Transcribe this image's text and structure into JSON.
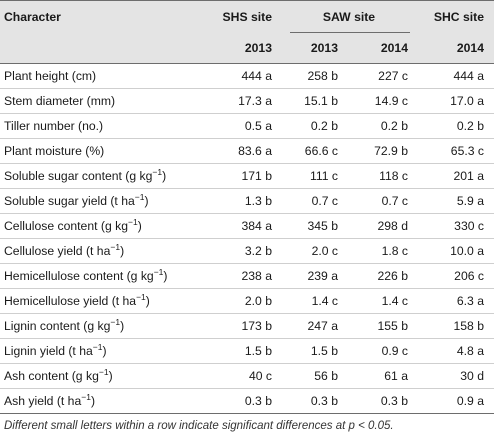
{
  "header": {
    "character": "Character",
    "sites": {
      "shs": "SHS site",
      "saw": "SAW site",
      "shc": "SHC site"
    },
    "years": [
      "2013",
      "2013",
      "2014",
      "2014"
    ]
  },
  "rows": [
    {
      "label": "Plant height (cm)",
      "unit_sup": "",
      "unit_tail": "",
      "values": [
        "444 a",
        "258 b",
        "227 c",
        "444 a"
      ]
    },
    {
      "label": "Stem diameter (mm)",
      "unit_sup": "",
      "unit_tail": "",
      "values": [
        "17.3 a",
        "15.1 b",
        "14.9 c",
        "17.0 a"
      ]
    },
    {
      "label": "Tiller number (no.)",
      "unit_sup": "",
      "unit_tail": "",
      "values": [
        "0.5 a",
        "0.2 b",
        "0.2 b",
        "0.2 b"
      ]
    },
    {
      "label": "Plant moisture (%)",
      "unit_sup": "",
      "unit_tail": "",
      "values": [
        "83.6 a",
        "66.6 c",
        "72.9 b",
        "65.3 c"
      ]
    },
    {
      "label": "Soluble sugar content (g kg",
      "unit_sup": "−1",
      "unit_tail": ")",
      "values": [
        "171 b",
        "111 c",
        "118 c",
        "201 a"
      ]
    },
    {
      "label": "Soluble sugar yield (t ha",
      "unit_sup": "−1",
      "unit_tail": ")",
      "values": [
        "1.3 b",
        "0.7 c",
        "0.7 c",
        "5.9 a"
      ]
    },
    {
      "label": "Cellulose content (g kg",
      "unit_sup": "−1",
      "unit_tail": ")",
      "values": [
        "384 a",
        "345 b",
        "298 d",
        "330 c"
      ]
    },
    {
      "label": "Cellulose yield (t ha",
      "unit_sup": "−1",
      "unit_tail": ")",
      "values": [
        "3.2 b",
        "2.0 c",
        "1.8 c",
        "10.0 a"
      ]
    },
    {
      "label": "Hemicellulose content (g kg",
      "unit_sup": "−1",
      "unit_tail": ")",
      "values": [
        "238 a",
        "239 a",
        "226 b",
        "206 c"
      ]
    },
    {
      "label": "Hemicellulose yield (t ha",
      "unit_sup": "−1",
      "unit_tail": ")",
      "values": [
        "2.0 b",
        "1.4 c",
        "1.4 c",
        "6.3 a"
      ]
    },
    {
      "label": "Lignin content (g kg",
      "unit_sup": "−1",
      "unit_tail": ")",
      "values": [
        "173 b",
        "247 a",
        "155 b",
        "158 b"
      ]
    },
    {
      "label": "Lignin yield (t ha",
      "unit_sup": "−1",
      "unit_tail": ")",
      "values": [
        "1.5 b",
        "1.5 b",
        "0.9 c",
        "4.8 a"
      ]
    },
    {
      "label": "Ash content (g kg",
      "unit_sup": "−1",
      "unit_tail": ")",
      "values": [
        "40 c",
        "56 b",
        "61 a",
        "30 d"
      ]
    },
    {
      "label": "Ash yield (t ha",
      "unit_sup": "−1",
      "unit_tail": ")",
      "values": [
        "0.3 b",
        "0.3 b",
        "0.3 b",
        "0.9 a"
      ]
    }
  ],
  "footnote": "Different small letters within a row indicate significant differences at p < 0.05."
}
